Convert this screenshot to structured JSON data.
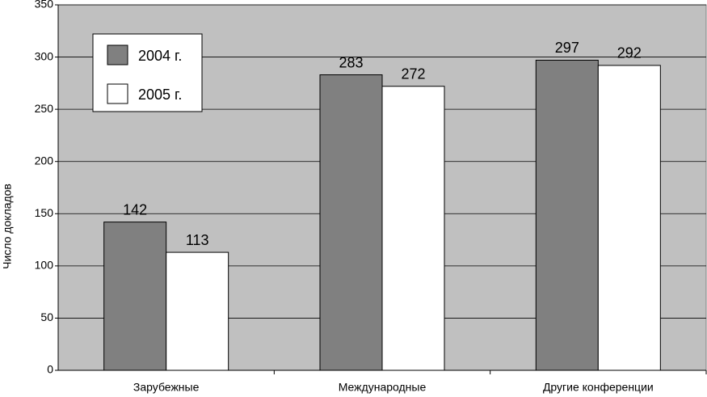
{
  "chart_data": {
    "type": "bar",
    "y_label": "Число докладов",
    "categories": [
      "Зарубежные",
      "Международные",
      "Другие конференции"
    ],
    "series": [
      {
        "name": "2004 г.",
        "color": "#808080",
        "values": [
          142,
          283,
          297
        ]
      },
      {
        "name": "2005 г.",
        "color": "#ffffff",
        "values": [
          113,
          272,
          292
        ]
      }
    ],
    "ylim": [
      0,
      350
    ],
    "yticks": [
      0,
      50,
      100,
      150,
      200,
      250,
      300,
      350
    ],
    "grid": true,
    "legend": "upper-left",
    "background": "#c0c0c0"
  }
}
